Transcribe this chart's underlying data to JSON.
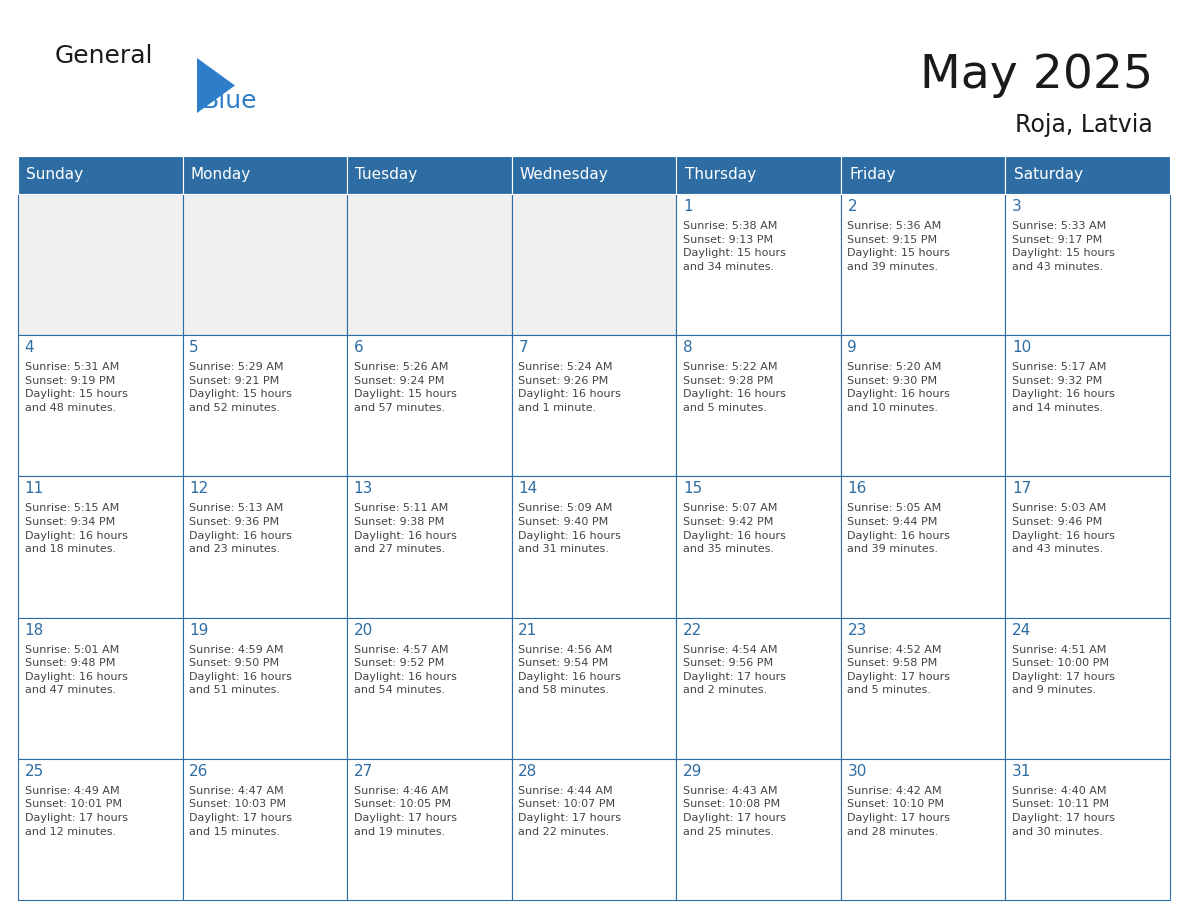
{
  "title": "May 2025",
  "subtitle": "Roja, Latvia",
  "header_color": "#2E6DA4",
  "header_text_color": "#FFFFFF",
  "cell_bg_color": "#FFFFFF",
  "cell_bg_empty": "#F0F0F0",
  "cell_border_color": "#2E6DA4",
  "day_number_color": "#2E6DA4",
  "text_color": "#444444",
  "logo_text_color": "#1a1a1a",
  "logo_blue_color": "#2E7DC9",
  "days_of_week": [
    "Sunday",
    "Monday",
    "Tuesday",
    "Wednesday",
    "Thursday",
    "Friday",
    "Saturday"
  ],
  "weeks": [
    [
      {
        "day": "",
        "text": ""
      },
      {
        "day": "",
        "text": ""
      },
      {
        "day": "",
        "text": ""
      },
      {
        "day": "",
        "text": ""
      },
      {
        "day": "1",
        "text": "Sunrise: 5:38 AM\nSunset: 9:13 PM\nDaylight: 15 hours\nand 34 minutes."
      },
      {
        "day": "2",
        "text": "Sunrise: 5:36 AM\nSunset: 9:15 PM\nDaylight: 15 hours\nand 39 minutes."
      },
      {
        "day": "3",
        "text": "Sunrise: 5:33 AM\nSunset: 9:17 PM\nDaylight: 15 hours\nand 43 minutes."
      }
    ],
    [
      {
        "day": "4",
        "text": "Sunrise: 5:31 AM\nSunset: 9:19 PM\nDaylight: 15 hours\nand 48 minutes."
      },
      {
        "day": "5",
        "text": "Sunrise: 5:29 AM\nSunset: 9:21 PM\nDaylight: 15 hours\nand 52 minutes."
      },
      {
        "day": "6",
        "text": "Sunrise: 5:26 AM\nSunset: 9:24 PM\nDaylight: 15 hours\nand 57 minutes."
      },
      {
        "day": "7",
        "text": "Sunrise: 5:24 AM\nSunset: 9:26 PM\nDaylight: 16 hours\nand 1 minute."
      },
      {
        "day": "8",
        "text": "Sunrise: 5:22 AM\nSunset: 9:28 PM\nDaylight: 16 hours\nand 5 minutes."
      },
      {
        "day": "9",
        "text": "Sunrise: 5:20 AM\nSunset: 9:30 PM\nDaylight: 16 hours\nand 10 minutes."
      },
      {
        "day": "10",
        "text": "Sunrise: 5:17 AM\nSunset: 9:32 PM\nDaylight: 16 hours\nand 14 minutes."
      }
    ],
    [
      {
        "day": "11",
        "text": "Sunrise: 5:15 AM\nSunset: 9:34 PM\nDaylight: 16 hours\nand 18 minutes."
      },
      {
        "day": "12",
        "text": "Sunrise: 5:13 AM\nSunset: 9:36 PM\nDaylight: 16 hours\nand 23 minutes."
      },
      {
        "day": "13",
        "text": "Sunrise: 5:11 AM\nSunset: 9:38 PM\nDaylight: 16 hours\nand 27 minutes."
      },
      {
        "day": "14",
        "text": "Sunrise: 5:09 AM\nSunset: 9:40 PM\nDaylight: 16 hours\nand 31 minutes."
      },
      {
        "day": "15",
        "text": "Sunrise: 5:07 AM\nSunset: 9:42 PM\nDaylight: 16 hours\nand 35 minutes."
      },
      {
        "day": "16",
        "text": "Sunrise: 5:05 AM\nSunset: 9:44 PM\nDaylight: 16 hours\nand 39 minutes."
      },
      {
        "day": "17",
        "text": "Sunrise: 5:03 AM\nSunset: 9:46 PM\nDaylight: 16 hours\nand 43 minutes."
      }
    ],
    [
      {
        "day": "18",
        "text": "Sunrise: 5:01 AM\nSunset: 9:48 PM\nDaylight: 16 hours\nand 47 minutes."
      },
      {
        "day": "19",
        "text": "Sunrise: 4:59 AM\nSunset: 9:50 PM\nDaylight: 16 hours\nand 51 minutes."
      },
      {
        "day": "20",
        "text": "Sunrise: 4:57 AM\nSunset: 9:52 PM\nDaylight: 16 hours\nand 54 minutes."
      },
      {
        "day": "21",
        "text": "Sunrise: 4:56 AM\nSunset: 9:54 PM\nDaylight: 16 hours\nand 58 minutes."
      },
      {
        "day": "22",
        "text": "Sunrise: 4:54 AM\nSunset: 9:56 PM\nDaylight: 17 hours\nand 2 minutes."
      },
      {
        "day": "23",
        "text": "Sunrise: 4:52 AM\nSunset: 9:58 PM\nDaylight: 17 hours\nand 5 minutes."
      },
      {
        "day": "24",
        "text": "Sunrise: 4:51 AM\nSunset: 10:00 PM\nDaylight: 17 hours\nand 9 minutes."
      }
    ],
    [
      {
        "day": "25",
        "text": "Sunrise: 4:49 AM\nSunset: 10:01 PM\nDaylight: 17 hours\nand 12 minutes."
      },
      {
        "day": "26",
        "text": "Sunrise: 4:47 AM\nSunset: 10:03 PM\nDaylight: 17 hours\nand 15 minutes."
      },
      {
        "day": "27",
        "text": "Sunrise: 4:46 AM\nSunset: 10:05 PM\nDaylight: 17 hours\nand 19 minutes."
      },
      {
        "day": "28",
        "text": "Sunrise: 4:44 AM\nSunset: 10:07 PM\nDaylight: 17 hours\nand 22 minutes."
      },
      {
        "day": "29",
        "text": "Sunrise: 4:43 AM\nSunset: 10:08 PM\nDaylight: 17 hours\nand 25 minutes."
      },
      {
        "day": "30",
        "text": "Sunrise: 4:42 AM\nSunset: 10:10 PM\nDaylight: 17 hours\nand 28 minutes."
      },
      {
        "day": "31",
        "text": "Sunrise: 4:40 AM\nSunset: 10:11 PM\nDaylight: 17 hours\nand 30 minutes."
      }
    ]
  ]
}
